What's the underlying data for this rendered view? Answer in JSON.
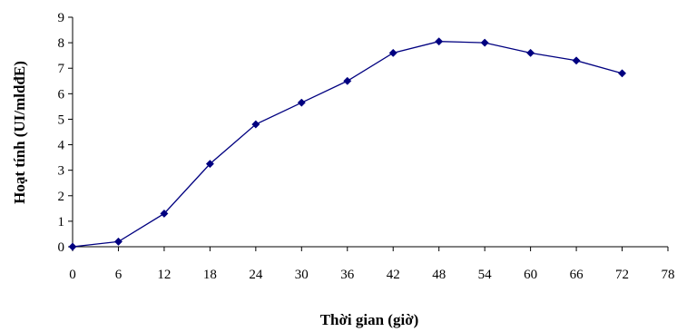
{
  "chart_data": {
    "type": "line",
    "title": "",
    "xlabel": "Thời gian (giờ)",
    "ylabel": "Hoạt tính (UI/mldđE)",
    "xlim": [
      0,
      78
    ],
    "ylim": [
      0,
      9
    ],
    "x_ticks": [
      0,
      6,
      12,
      18,
      24,
      30,
      36,
      42,
      48,
      54,
      60,
      66,
      72,
      78
    ],
    "y_ticks": [
      0,
      1,
      2,
      3,
      4,
      5,
      6,
      7,
      8,
      9
    ],
    "grid": false,
    "legend": "none",
    "series": [
      {
        "color": "#000080",
        "marker": "diamond",
        "x": [
          0,
          6,
          12,
          18,
          24,
          30,
          36,
          42,
          48,
          54,
          60,
          66,
          72
        ],
        "y": [
          0,
          0.2,
          1.3,
          3.25,
          4.8,
          5.65,
          6.5,
          7.6,
          8.05,
          8.0,
          7.6,
          7.3,
          6.8
        ]
      }
    ]
  }
}
